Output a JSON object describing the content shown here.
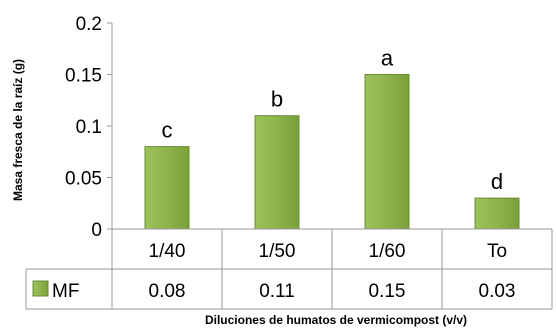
{
  "chart_data": {
    "type": "bar",
    "categories": [
      "1/40",
      "1/50",
      "1/60",
      "To"
    ],
    "series": [
      {
        "name": "MF",
        "values": [
          0.08,
          0.11,
          0.15,
          0.03
        ]
      }
    ],
    "table_values": [
      "0.08",
      "0.11",
      "0.15",
      "0.03"
    ],
    "significance_letters": [
      "c",
      "b",
      "a",
      "d"
    ],
    "xlabel": "Diluciones de humatos de vermicompost  (v/v)",
    "ylabel": "Masa fresca de la raíz (g)",
    "yticks": [
      "0",
      "0.05",
      "0.1",
      "0.15",
      "0.2"
    ],
    "ylim": [
      0,
      0.2
    ],
    "grid": false,
    "bar_color": "#8db34b",
    "bar_edge_color": "#6a8c35",
    "data_table": true
  }
}
